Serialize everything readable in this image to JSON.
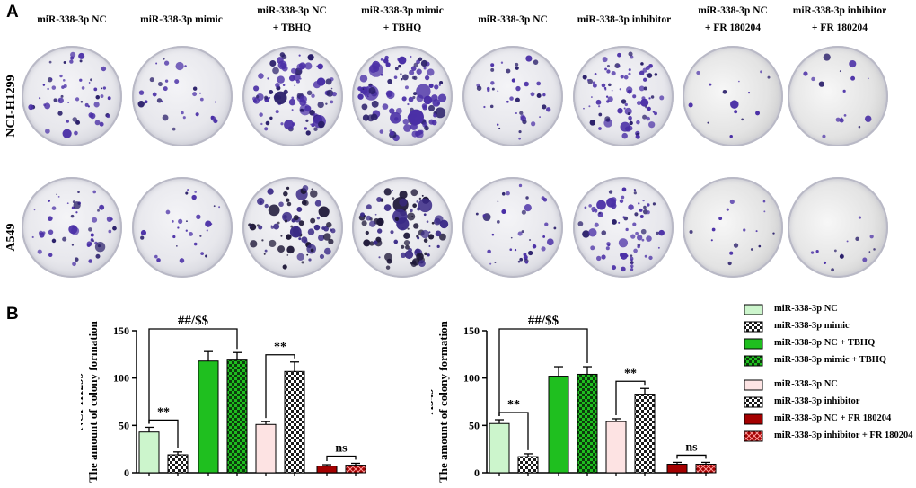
{
  "panel_a_label": "A",
  "panel_b_label": "B",
  "columns": [
    {
      "line1": "miR-338-3p NC",
      "line2": ""
    },
    {
      "line1": "miR-338-3p mimic",
      "line2": ""
    },
    {
      "line1": "miR-338-3p NC",
      "line2": "+ TBHQ"
    },
    {
      "line1": "miR-338-3p mimic",
      "line2": "+ TBHQ"
    },
    {
      "line1": "miR-338-3p NC",
      "line2": ""
    },
    {
      "line1": "miR-338-3p inhibitor",
      "line2": ""
    },
    {
      "line1": "miR-338-3p NC",
      "line2": "+ FR 180204"
    },
    {
      "line1": "miR-338-3p inhibitor",
      "line2": "+ FR 180204"
    }
  ],
  "rows": [
    "NCI-H1299",
    "A549"
  ],
  "colors": {
    "nc_light_green": "#ccf5cc",
    "green": "#1fbf1f",
    "pink": "#fde3e3",
    "dark_red": "#a40000",
    "crystal_violet": "#4a2fa6"
  },
  "legend": {
    "group1": [
      {
        "label": "miR-338-3p NC",
        "fill": "light-green",
        "pattern": false
      },
      {
        "label": "miR-338-3p mimic",
        "fill": "white",
        "pattern": true
      },
      {
        "label": "miR-338-3p NC + TBHQ",
        "fill": "green",
        "pattern": false
      },
      {
        "label": "miR-338-3p mimic + TBHQ",
        "fill": "green",
        "pattern": true
      }
    ],
    "group2": [
      {
        "label": "miR-338-3p NC",
        "fill": "pink",
        "pattern": false
      },
      {
        "label": "miR-338-3p inhibitor",
        "fill": "white",
        "pattern": true
      },
      {
        "label": "miR-338-3p NC + FR 180204",
        "fill": "dark-red",
        "pattern": false
      },
      {
        "label": "miR-338-3p inhibitor + FR 180204",
        "fill": "dark-red",
        "pattern": true
      }
    ]
  },
  "chart_data": [
    {
      "type": "bar",
      "title": "",
      "row_label": "NCI-H1299",
      "ylabel": "The amount of colony formation",
      "ylim": [
        0,
        150
      ],
      "yticks": [
        0,
        50,
        100,
        150
      ],
      "categories": [
        "miR-338-3p NC",
        "miR-338-3p mimic",
        "miR-338-3p NC + TBHQ",
        "miR-338-3p mimic + TBHQ",
        "miR-338-3p NC",
        "miR-338-3p inhibitor",
        "miR-338-3p NC + FR 180204",
        "miR-338-3p inhibitor + FR 180204"
      ],
      "values": [
        43,
        19,
        118,
        119,
        51,
        107,
        7,
        8
      ],
      "errors": [
        5,
        3,
        10,
        8,
        3,
        10,
        1.5,
        2
      ],
      "annotations": [
        {
          "text": "##/$$",
          "from": 0,
          "to": 3
        },
        {
          "text": "**",
          "from": 0,
          "to": 1
        },
        {
          "text": "**",
          "from": 4,
          "to": 5
        },
        {
          "text": "ns",
          "from": 6,
          "to": 7
        }
      ]
    },
    {
      "type": "bar",
      "title": "",
      "row_label": "A549",
      "ylabel": "The amount of colony formation",
      "ylim": [
        0,
        150
      ],
      "yticks": [
        0,
        50,
        100,
        150
      ],
      "categories": [
        "miR-338-3p NC",
        "miR-338-3p mimic",
        "miR-338-3p NC + TBHQ",
        "miR-338-3p mimic + TBHQ",
        "miR-338-3p NC",
        "miR-338-3p inhibitor",
        "miR-338-3p NC + FR 180204",
        "miR-338-3p inhibitor + FR 180204"
      ],
      "values": [
        52,
        17,
        102,
        104,
        54,
        83,
        9,
        9
      ],
      "errors": [
        4,
        3,
        10,
        8,
        3,
        6,
        2,
        2
      ],
      "annotations": [
        {
          "text": "##/$$",
          "from": 0,
          "to": 3
        },
        {
          "text": "**",
          "from": 0,
          "to": 1
        },
        {
          "text": "**",
          "from": 4,
          "to": 5
        },
        {
          "text": "ns",
          "from": 6,
          "to": 7
        }
      ]
    }
  ]
}
